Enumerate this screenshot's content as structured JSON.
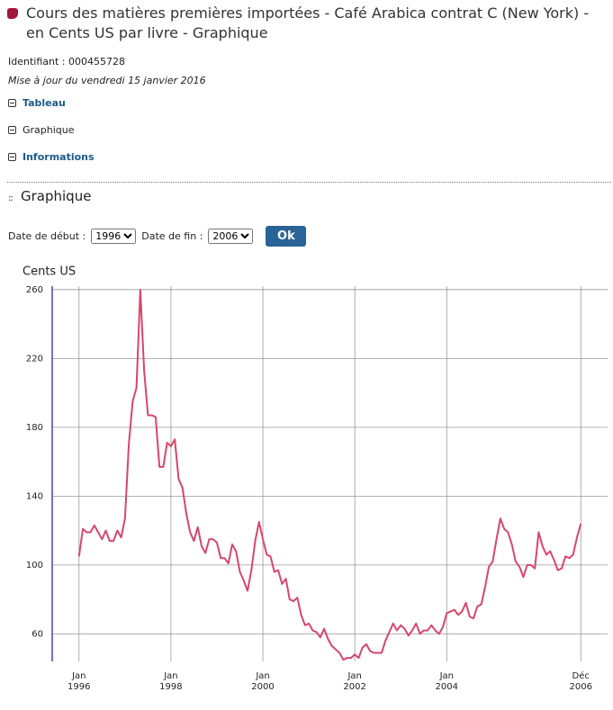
{
  "header": {
    "title_line1": "Cours des matières premières importées - Café Arabica contrat C (New York) -",
    "title_line2": "en Cents US par livre - Graphique"
  },
  "meta": {
    "identifier": "Identifiant : 000455728",
    "updated": "Mise à jour du vendredi 15 janvier 2016"
  },
  "links": [
    "Tableau",
    "Graphique",
    "Informations"
  ],
  "section_title": "Graphique",
  "form": {
    "start_label": "Date de début :",
    "start_value": "1996",
    "end_label": "Date de fin :",
    "end_value": "2006",
    "button": "Ok"
  },
  "chart_data": {
    "type": "line",
    "y_label": "Cents US",
    "color": "#d6476b",
    "grid": true,
    "x": [
      "1996-01",
      "1996-02",
      "1996-03",
      "1996-04",
      "1996-05",
      "1996-06",
      "1996-07",
      "1996-08",
      "1996-09",
      "1996-10",
      "1996-11",
      "1996-12",
      "1997-01",
      "1997-02",
      "1997-03",
      "1997-04",
      "1997-05",
      "1997-06",
      "1997-07",
      "1997-08",
      "1997-09",
      "1997-10",
      "1997-11",
      "1997-12",
      "1998-01",
      "1998-02",
      "1998-03",
      "1998-04",
      "1998-05",
      "1998-06",
      "1998-07",
      "1998-08",
      "1998-09",
      "1998-10",
      "1998-11",
      "1998-12",
      "1999-01",
      "1999-02",
      "1999-03",
      "1999-04",
      "1999-05",
      "1999-06",
      "1999-07",
      "1999-08",
      "1999-09",
      "1999-10",
      "1999-11",
      "1999-12",
      "2000-01",
      "2000-02",
      "2000-03",
      "2000-04",
      "2000-05",
      "2000-06",
      "2000-07",
      "2000-08",
      "2000-09",
      "2000-10",
      "2000-11",
      "2000-12",
      "2001-01",
      "2001-02",
      "2001-03",
      "2001-04",
      "2001-05",
      "2001-06",
      "2001-07",
      "2001-08",
      "2001-09",
      "2001-10",
      "2001-11",
      "2001-12",
      "2002-01",
      "2002-02",
      "2002-03",
      "2002-04",
      "2002-05",
      "2002-06",
      "2002-07",
      "2002-08",
      "2002-09",
      "2002-10",
      "2002-11",
      "2002-12",
      "2003-01",
      "2003-02",
      "2003-03",
      "2003-04",
      "2003-05",
      "2003-06",
      "2003-07",
      "2003-08",
      "2003-09",
      "2003-10",
      "2003-11",
      "2003-12",
      "2004-01",
      "2004-02",
      "2004-03",
      "2004-04",
      "2004-05",
      "2004-06",
      "2004-07",
      "2004-08",
      "2004-09",
      "2004-10",
      "2004-11",
      "2004-12",
      "2005-01",
      "2005-02",
      "2005-03",
      "2005-04",
      "2005-05",
      "2005-06",
      "2005-07",
      "2005-08",
      "2005-09",
      "2005-10",
      "2005-11",
      "2005-12",
      "2006-01",
      "2006-02",
      "2006-03",
      "2006-04",
      "2006-05",
      "2006-06",
      "2006-07",
      "2006-08",
      "2006-09",
      "2006-10",
      "2006-11",
      "2006-12"
    ],
    "values": [
      105,
      121,
      119,
      119,
      123,
      119,
      115,
      120,
      114,
      114,
      120,
      116,
      127,
      170,
      195,
      203,
      260,
      213,
      187,
      187,
      186,
      157,
      157,
      171,
      169,
      173,
      150,
      145,
      130,
      119,
      114,
      122,
      111,
      107,
      115,
      115,
      113,
      104,
      104,
      101,
      112,
      108,
      96,
      91,
      85,
      97,
      114,
      125,
      115,
      106,
      105,
      96,
      97,
      89,
      92,
      80,
      79,
      81,
      71,
      65,
      66,
      62,
      61,
      58,
      63,
      57,
      53,
      51,
      49,
      45,
      46,
      46,
      48,
      46,
      52,
      54,
      50,
      49,
      49,
      49,
      56,
      61,
      66,
      62,
      65,
      63,
      59,
      62,
      66,
      60,
      62,
      62,
      65,
      62,
      60,
      64,
      72,
      73,
      74,
      71,
      73,
      78,
      70,
      69,
      76,
      77,
      87,
      99,
      102,
      115,
      127,
      121,
      119,
      112,
      102,
      99,
      93,
      100,
      100,
      98,
      119,
      111,
      106,
      108,
      103,
      97,
      98,
      105,
      104,
      106,
      116,
      124
    ],
    "xlim": [
      "1995-06",
      "2007-07"
    ],
    "xticks": [
      {
        "value": "1996-01",
        "label": [
          "Jan",
          "1996"
        ]
      },
      {
        "value": "1998-01",
        "label": [
          "Jan",
          "1998"
        ]
      },
      {
        "value": "2000-01",
        "label": [
          "Jan",
          "2000"
        ]
      },
      {
        "value": "2002-01",
        "label": [
          "Jan",
          "2002"
        ]
      },
      {
        "value": "2004-01",
        "label": [
          "Jan",
          "2004"
        ]
      },
      {
        "value": "2006-12",
        "label": [
          "Déc",
          "2006"
        ]
      }
    ],
    "ylim": [
      44,
      262
    ],
    "yticks": [
      60,
      100,
      140,
      180,
      220,
      260
    ]
  }
}
